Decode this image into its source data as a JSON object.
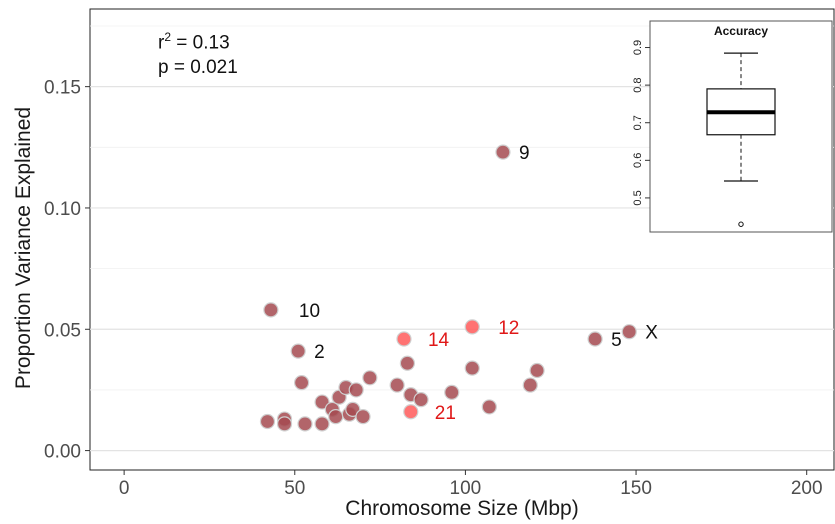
{
  "chart_data": [
    {
      "type": "scatter",
      "xlabel": "Chromosome Size (Mbp)",
      "ylabel": "Proportion Variance Explained",
      "xlim": [
        -10,
        208
      ],
      "ylim": [
        -0.008,
        0.182
      ],
      "xticks": [
        "0",
        "50",
        "100",
        "150",
        "200"
      ],
      "xtick_values": [
        0,
        50,
        100,
        150,
        200
      ],
      "yticks": [
        "0.00",
        "0.05",
        "0.10",
        "0.15"
      ],
      "ytick_values": [
        0,
        0.05,
        0.1,
        0.15
      ],
      "grid": true,
      "annotations": {
        "r2_label": "r",
        "r2_sup": "2",
        "r2_value": " = 0.13",
        "p_text": "p = 0.021"
      },
      "colors": {
        "normal": "#a54a50",
        "highlight": "#ff5a5a",
        "label_normal": "#111111",
        "label_highlight": "#e01818"
      },
      "points": [
        {
          "x": 111,
          "y": 0.123,
          "label": "9",
          "highlight": false
        },
        {
          "x": 43,
          "y": 0.058,
          "label": "10",
          "highlight": false
        },
        {
          "x": 51,
          "y": 0.041,
          "label": "2",
          "highlight": false
        },
        {
          "x": 102,
          "y": 0.051,
          "label": "12",
          "highlight": true
        },
        {
          "x": 82,
          "y": 0.046,
          "label": "14",
          "highlight": true
        },
        {
          "x": 138,
          "y": 0.046,
          "label": "5",
          "highlight": false
        },
        {
          "x": 148,
          "y": 0.049,
          "label": "X",
          "highlight": false
        },
        {
          "x": 84,
          "y": 0.016,
          "label": "21",
          "highlight": true
        },
        {
          "x": 42,
          "y": 0.012,
          "label": "",
          "highlight": false
        },
        {
          "x": 47,
          "y": 0.013,
          "label": "",
          "highlight": false
        },
        {
          "x": 47,
          "y": 0.011,
          "label": "",
          "highlight": false
        },
        {
          "x": 52,
          "y": 0.028,
          "label": "",
          "highlight": false
        },
        {
          "x": 53,
          "y": 0.011,
          "label": "",
          "highlight": false
        },
        {
          "x": 58,
          "y": 0.02,
          "label": "",
          "highlight": false
        },
        {
          "x": 58,
          "y": 0.011,
          "label": "",
          "highlight": false
        },
        {
          "x": 61,
          "y": 0.017,
          "label": "",
          "highlight": false
        },
        {
          "x": 62,
          "y": 0.014,
          "label": "",
          "highlight": false
        },
        {
          "x": 63,
          "y": 0.022,
          "label": "",
          "highlight": false
        },
        {
          "x": 65,
          "y": 0.026,
          "label": "",
          "highlight": false
        },
        {
          "x": 66,
          "y": 0.015,
          "label": "",
          "highlight": false
        },
        {
          "x": 67,
          "y": 0.017,
          "label": "",
          "highlight": false
        },
        {
          "x": 68,
          "y": 0.025,
          "label": "",
          "highlight": false
        },
        {
          "x": 70,
          "y": 0.014,
          "label": "",
          "highlight": false
        },
        {
          "x": 72,
          "y": 0.03,
          "label": "",
          "highlight": false
        },
        {
          "x": 80,
          "y": 0.027,
          "label": "",
          "highlight": false
        },
        {
          "x": 83,
          "y": 0.036,
          "label": "",
          "highlight": false
        },
        {
          "x": 84,
          "y": 0.023,
          "label": "",
          "highlight": false
        },
        {
          "x": 87,
          "y": 0.021,
          "label": "",
          "highlight": false
        },
        {
          "x": 96,
          "y": 0.024,
          "label": "",
          "highlight": false
        },
        {
          "x": 102,
          "y": 0.034,
          "label": "",
          "highlight": false
        },
        {
          "x": 107,
          "y": 0.018,
          "label": "",
          "highlight": false
        },
        {
          "x": 119,
          "y": 0.027,
          "label": "",
          "highlight": false
        },
        {
          "x": 121,
          "y": 0.033,
          "label": "",
          "highlight": false
        }
      ]
    },
    {
      "type": "box",
      "title": "Accuracy",
      "ylim": [
        0.42,
        0.92
      ],
      "yticks": [
        "0.5",
        "0.6",
        "0.7",
        "0.8",
        "0.9"
      ],
      "ytick_values": [
        0.5,
        0.6,
        0.7,
        0.8,
        0.9
      ],
      "whisker_low": 0.545,
      "q1": 0.668,
      "median": 0.728,
      "q3": 0.79,
      "whisker_high": 0.885,
      "outliers": [
        0.43
      ]
    }
  ]
}
